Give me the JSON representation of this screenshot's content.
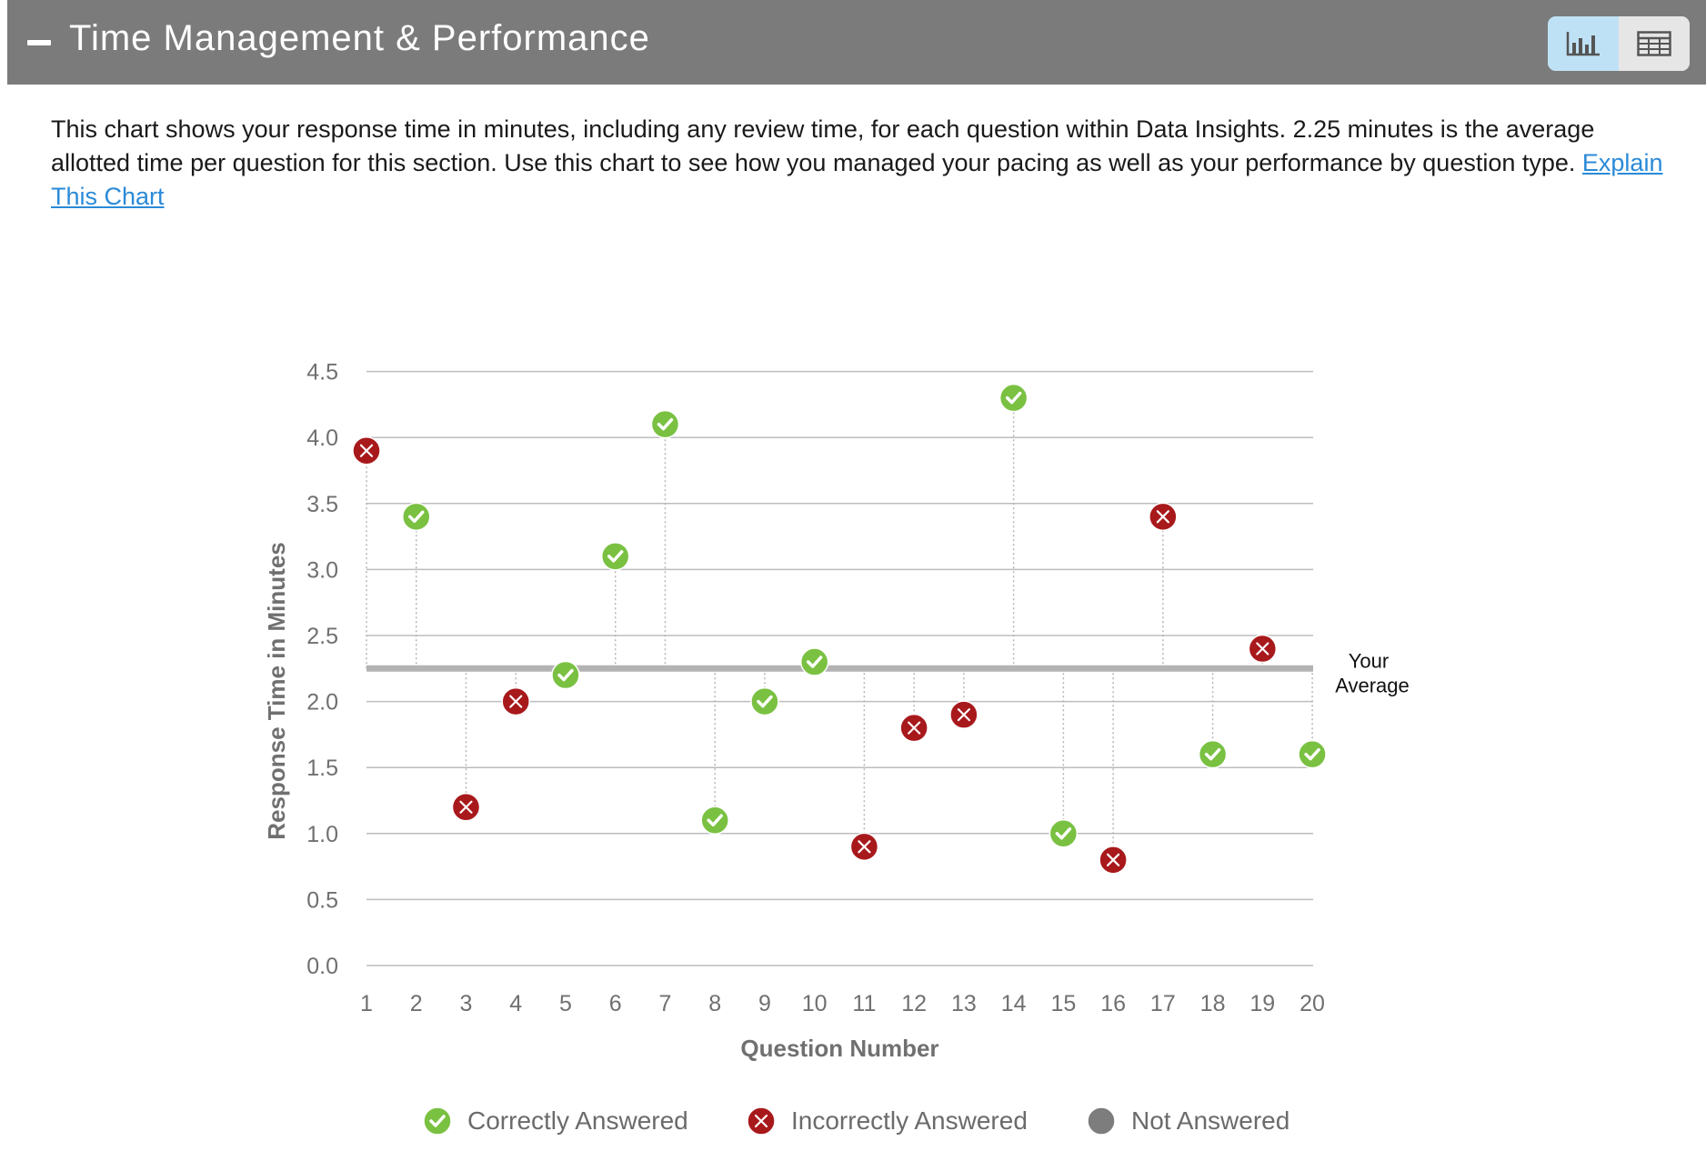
{
  "header": {
    "title": "Time Management & Performance",
    "icons": {
      "collapse": "minus-icon",
      "chart_view": "bar-chart-icon",
      "table_view": "table-icon"
    }
  },
  "description": {
    "text": "This chart shows your response time in minutes, including any review time, for each question within Data Insights. 2.25 minutes is the average allotted time per question for this section. Use this chart to see how you managed your pacing as well as your performance by question type. ",
    "link": "Explain This Chart"
  },
  "colors": {
    "correct": "#7ac142",
    "incorrect": "#a8191c",
    "not_answered": "#7d7d7d",
    "average_line": "#b3b3b3",
    "grid": "#bdbdbd",
    "header": "#7b7b7b",
    "toggle_active": "#bfe1f5"
  },
  "chart_data": {
    "type": "scatter",
    "xlabel": "Question Number",
    "ylabel": "Response Time in Minutes",
    "ylim": [
      0,
      4.5
    ],
    "y_ticks": [
      "0.0",
      "0.5",
      "1.0",
      "1.5",
      "2.0",
      "2.5",
      "3.0",
      "3.5",
      "4.0",
      "4.5"
    ],
    "x_ticks": [
      "1",
      "2",
      "3",
      "4",
      "5",
      "6",
      "7",
      "8",
      "9",
      "10",
      "11",
      "12",
      "13",
      "14",
      "15",
      "16",
      "17",
      "18",
      "19",
      "20"
    ],
    "average": 2.25,
    "average_label_line1": "Your",
    "average_label_line2": "Average",
    "grid": true,
    "points": [
      {
        "x": 1,
        "y": 3.9,
        "status": "incorrect"
      },
      {
        "x": 2,
        "y": 3.4,
        "status": "correct"
      },
      {
        "x": 3,
        "y": 1.2,
        "status": "incorrect"
      },
      {
        "x": 4,
        "y": 2.0,
        "status": "incorrect"
      },
      {
        "x": 5,
        "y": 2.2,
        "status": "correct"
      },
      {
        "x": 6,
        "y": 3.1,
        "status": "correct"
      },
      {
        "x": 7,
        "y": 4.1,
        "status": "correct"
      },
      {
        "x": 8,
        "y": 1.1,
        "status": "correct"
      },
      {
        "x": 9,
        "y": 2.0,
        "status": "correct"
      },
      {
        "x": 10,
        "y": 2.3,
        "status": "correct"
      },
      {
        "x": 11,
        "y": 0.9,
        "status": "incorrect"
      },
      {
        "x": 12,
        "y": 1.8,
        "status": "incorrect"
      },
      {
        "x": 13,
        "y": 1.9,
        "status": "incorrect"
      },
      {
        "x": 14,
        "y": 4.3,
        "status": "correct"
      },
      {
        "x": 15,
        "y": 1.0,
        "status": "correct"
      },
      {
        "x": 16,
        "y": 0.8,
        "status": "incorrect"
      },
      {
        "x": 17,
        "y": 3.4,
        "status": "incorrect"
      },
      {
        "x": 18,
        "y": 1.6,
        "status": "correct"
      },
      {
        "x": 19,
        "y": 2.4,
        "status": "incorrect"
      },
      {
        "x": 20,
        "y": 1.6,
        "status": "correct"
      }
    ],
    "legend": [
      {
        "label": "Correctly Answered",
        "status": "correct",
        "icon": "check-circle-icon"
      },
      {
        "label": "Incorrectly Answered",
        "status": "incorrect",
        "icon": "x-circle-icon"
      },
      {
        "label": "Not Answered",
        "status": "not_answered",
        "icon": "gray-circle-icon"
      }
    ],
    "legend_position": "bottom-center"
  }
}
